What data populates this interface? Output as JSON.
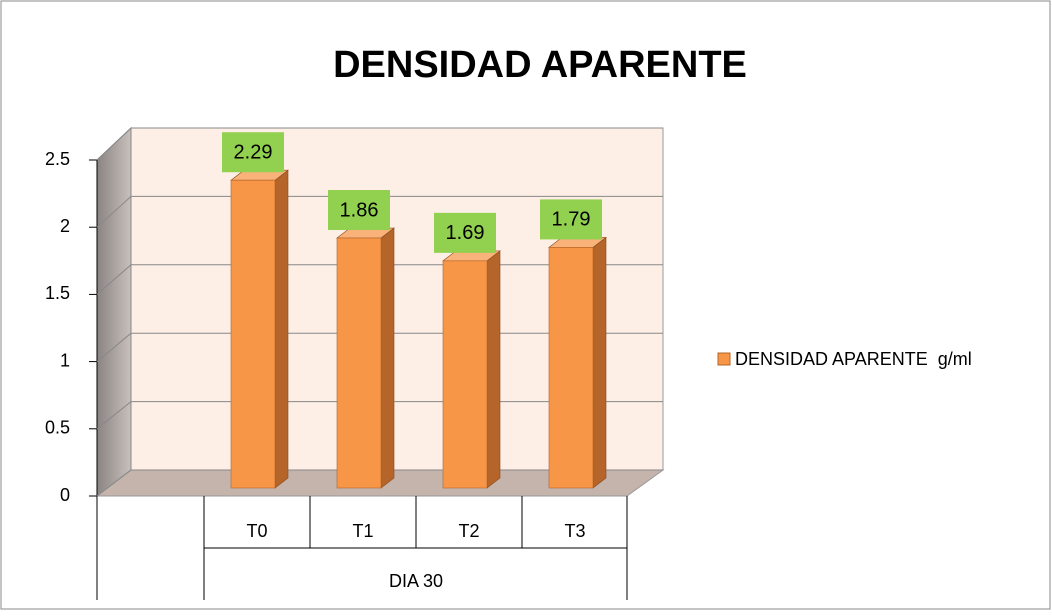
{
  "chart_data": {
    "type": "bar3d",
    "title": "DENSIDAD APARENTE",
    "categories": [
      "T0",
      "T1",
      "T2",
      "T3"
    ],
    "group_label": "DIA 30",
    "series": [
      {
        "name": "DENSIDAD APARENTE  g/ml",
        "color": "#f79646",
        "values": [
          2.29,
          1.86,
          1.69,
          1.79
        ]
      }
    ],
    "ylim": [
      0,
      2.5
    ],
    "yticks": [
      0,
      0.5,
      1,
      1.5,
      2,
      2.5
    ],
    "grid": true,
    "legend": "right"
  }
}
